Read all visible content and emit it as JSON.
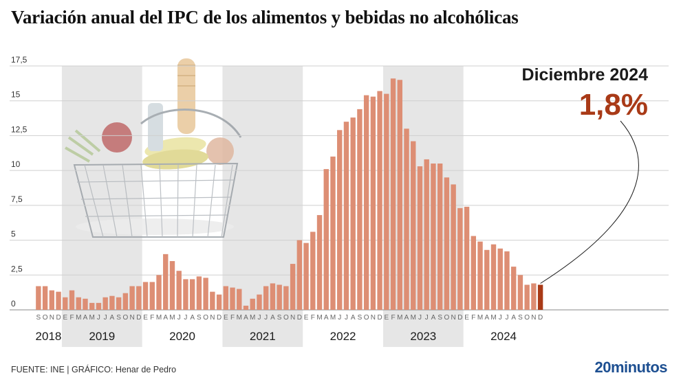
{
  "title": "Variación anual del IPC de los alimentos y bebidas no alcohólicas",
  "footer": {
    "source": "FUENTE: INE  |  GRÁFICO: Henar de Pedro"
  },
  "brand": "20minutos",
  "callout": {
    "label": "Diciembre 2024",
    "value": "1,8%"
  },
  "colors": {
    "bar": "#dd8e74",
    "highlight": "#a93a17",
    "band": "#e6e6e6",
    "callout": "#a93a17",
    "brand": "#1d4f91"
  },
  "chart_data": {
    "type": "bar",
    "ylim": [
      0,
      17.5
    ],
    "yticks": [
      "0",
      "2,5",
      "5",
      "7,5",
      "10",
      "12,5",
      "15",
      "17,5"
    ],
    "grid": true,
    "month_letters": [
      "E",
      "F",
      "M",
      "A",
      "M",
      "J",
      "J",
      "A",
      "S",
      "O",
      "N",
      "D"
    ],
    "years": [
      {
        "label": "2018",
        "shaded": false
      },
      {
        "label": "2019",
        "shaded": true
      },
      {
        "label": "2020",
        "shaded": false
      },
      {
        "label": "2021",
        "shaded": true
      },
      {
        "label": "2022",
        "shaded": false
      },
      {
        "label": "2023",
        "shaded": true
      },
      {
        "label": "2024",
        "shaded": false
      }
    ],
    "series": [
      {
        "start": "2018-09",
        "values": [
          1.7,
          1.7,
          1.4,
          1.3,
          0.9,
          1.4,
          0.9,
          0.8,
          0.5,
          0.5,
          0.9,
          1.0,
          0.9,
          1.2,
          1.7,
          1.7,
          2.0,
          2.0,
          2.5,
          4.0,
          3.5,
          2.8,
          2.2,
          2.2,
          2.4,
          2.3,
          1.3,
          1.1,
          1.7,
          1.6,
          1.5,
          0.3,
          0.8,
          1.1,
          1.7,
          1.9,
          1.8,
          1.7,
          3.3,
          5.0,
          4.8,
          5.6,
          6.8,
          10.1,
          11.0,
          12.9,
          13.5,
          13.8,
          14.4,
          15.4,
          15.3,
          15.7,
          15.5,
          16.6,
          16.5,
          13.0,
          12.1,
          10.3,
          10.8,
          10.5,
          10.5,
          9.5,
          9.0,
          7.3,
          7.4,
          5.3,
          4.9,
          4.3,
          4.7,
          4.4,
          4.2,
          3.1,
          2.5,
          1.8,
          1.9,
          1.8
        ]
      }
    ],
    "highlight_label": "Diciembre 2024",
    "highlight_value": 1.8
  }
}
